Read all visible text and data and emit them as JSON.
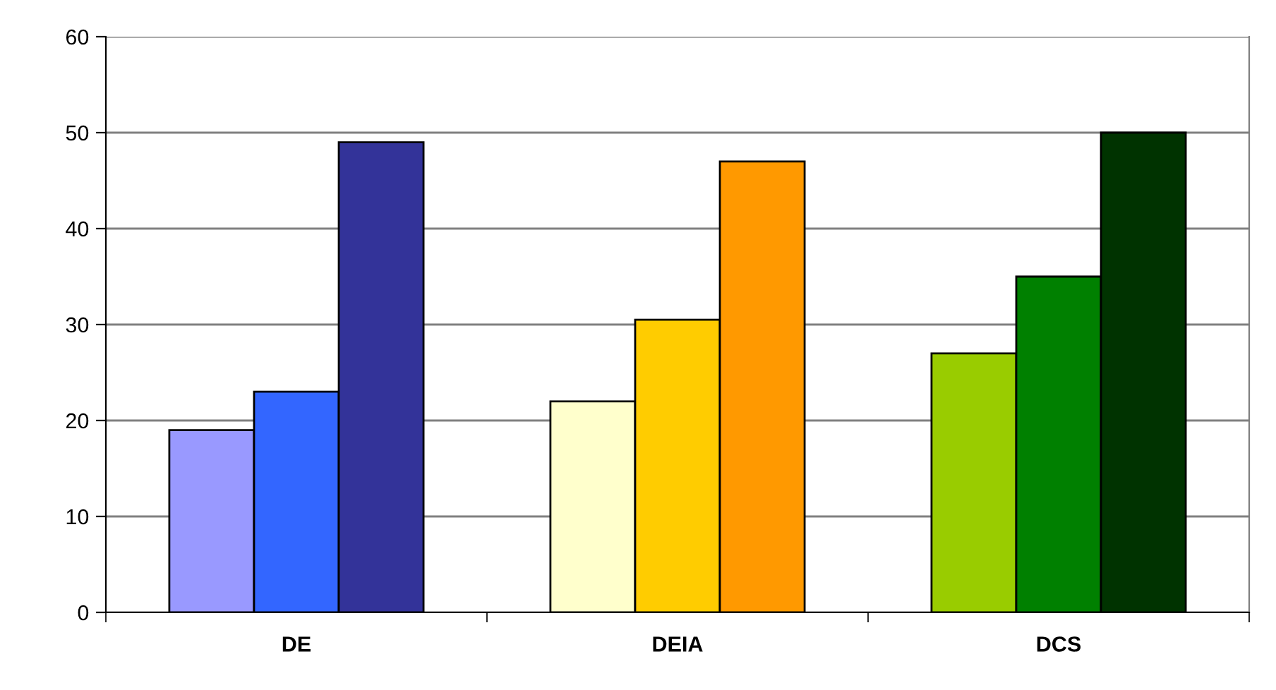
{
  "chart_data": {
    "type": "bar",
    "categories": [
      "DE",
      "DEIA",
      "DCS"
    ],
    "series": [
      {
        "values": [
          19,
          22,
          27
        ],
        "colors": [
          "#9999ff",
          "#ffffcc",
          "#99cc00"
        ]
      },
      {
        "values": [
          23,
          30.5,
          35
        ],
        "colors": [
          "#3366ff",
          "#ffcc00",
          "#008000"
        ]
      },
      {
        "values": [
          49,
          47,
          50
        ],
        "colors": [
          "#333399",
          "#ff9900",
          "#003300"
        ]
      }
    ],
    "ylim": [
      0,
      60
    ],
    "yticks": [
      0,
      10,
      20,
      30,
      40,
      50,
      60
    ],
    "grid": "y"
  }
}
